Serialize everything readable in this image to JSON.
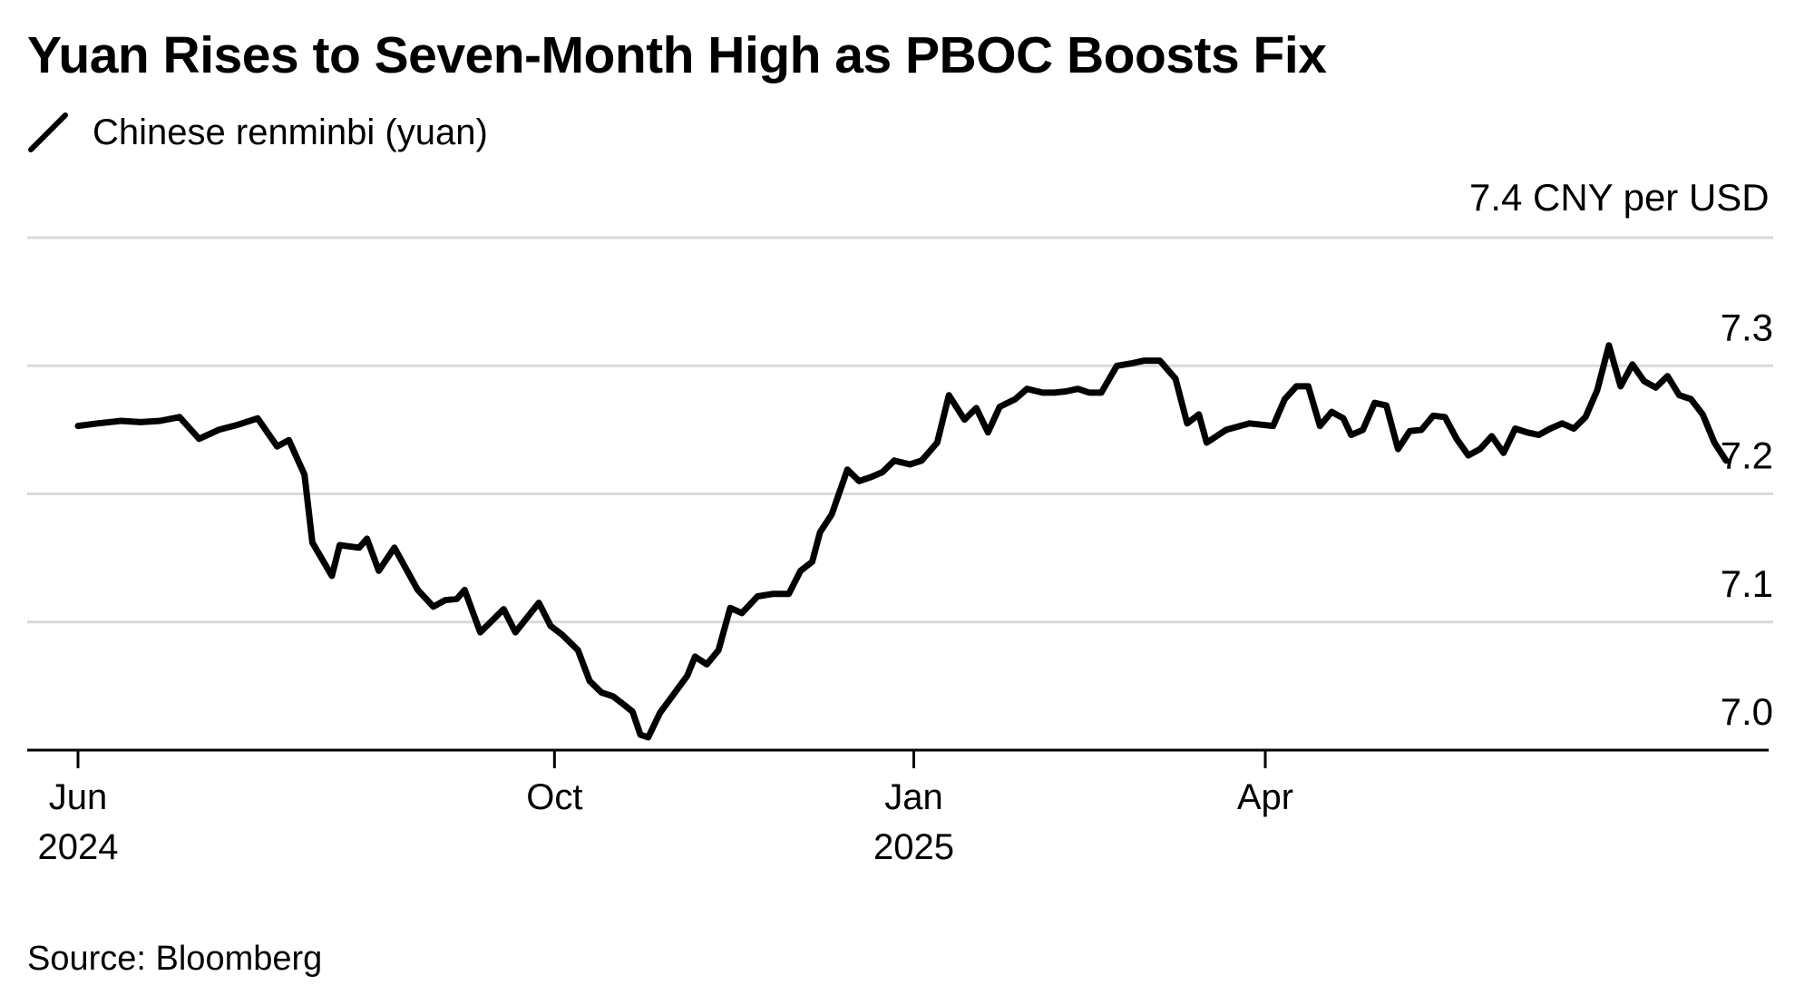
{
  "title": "Yuan Rises to Seven-Month High as PBOC Boosts Fix",
  "legend": {
    "label": "Chinese renminbi (yuan)",
    "color": "#000000"
  },
  "source": "Source: Bloomberg",
  "chart_data": {
    "type": "line",
    "title": "Yuan Rises to Seven-Month High as PBOC Boosts Fix",
    "ylabel": "CNY per USD",
    "ylim": [
      7.0,
      7.4
    ],
    "grid": true,
    "legend_position": "top-left",
    "y_ticks": [
      {
        "value": 7.0,
        "label": "7.0"
      },
      {
        "value": 7.1,
        "label": "7.1"
      },
      {
        "value": 7.2,
        "label": "7.2"
      },
      {
        "value": 7.3,
        "label": "7.3"
      },
      {
        "value": 7.4,
        "label": "7.4"
      }
    ],
    "y_unit_label": "CNY per USD",
    "x_ticks": [
      {
        "date": "2024-06-01",
        "label": "Jun",
        "sublabel": "2024"
      },
      {
        "date": "2024-10-01",
        "label": "Oct",
        "sublabel": ""
      },
      {
        "date": "2025-01-01",
        "label": "Jan",
        "sublabel": "2025"
      },
      {
        "date": "2025-04-01",
        "label": "Apr",
        "sublabel": ""
      }
    ],
    "x_range": [
      "2024-05-17",
      "2025-07-31"
    ],
    "series": [
      {
        "name": "Chinese renminbi (yuan)",
        "color": "#000000",
        "points": [
          [
            "2024-06-01",
            7.253
          ],
          [
            "2024-06-06",
            7.255
          ],
          [
            "2024-06-12",
            7.257
          ],
          [
            "2024-06-17",
            7.256
          ],
          [
            "2024-06-22",
            7.257
          ],
          [
            "2024-06-27",
            7.26
          ],
          [
            "2024-07-02",
            7.243
          ],
          [
            "2024-07-07",
            7.25
          ],
          [
            "2024-07-12",
            7.254
          ],
          [
            "2024-07-17",
            7.259
          ],
          [
            "2024-07-22",
            7.237
          ],
          [
            "2024-07-25",
            7.242
          ],
          [
            "2024-07-29",
            7.215
          ],
          [
            "2024-07-31",
            7.162
          ],
          [
            "2024-08-05",
            7.136
          ],
          [
            "2024-08-07",
            7.16
          ],
          [
            "2024-08-12",
            7.158
          ],
          [
            "2024-08-14",
            7.165
          ],
          [
            "2024-08-17",
            7.14
          ],
          [
            "2024-08-21",
            7.158
          ],
          [
            "2024-08-27",
            7.125
          ],
          [
            "2024-08-31",
            7.112
          ],
          [
            "2024-09-03",
            7.117
          ],
          [
            "2024-09-06",
            7.118
          ],
          [
            "2024-09-08",
            7.125
          ],
          [
            "2024-09-12",
            7.092
          ],
          [
            "2024-09-18",
            7.11
          ],
          [
            "2024-09-21",
            7.092
          ],
          [
            "2024-09-27",
            7.115
          ],
          [
            "2024-09-30",
            7.097
          ],
          [
            "2024-10-03",
            7.09
          ],
          [
            "2024-10-07",
            7.078
          ],
          [
            "2024-10-10",
            7.054
          ],
          [
            "2024-10-13",
            7.045
          ],
          [
            "2024-10-16",
            7.042
          ],
          [
            "2024-10-19",
            7.035
          ],
          [
            "2024-10-21",
            7.03
          ],
          [
            "2024-10-23",
            7.012
          ],
          [
            "2024-10-25",
            7.01
          ],
          [
            "2024-10-28",
            7.029
          ],
          [
            "2024-11-04",
            7.058
          ],
          [
            "2024-11-06",
            7.073
          ],
          [
            "2024-11-09",
            7.067
          ],
          [
            "2024-11-12",
            7.078
          ],
          [
            "2024-11-15",
            7.111
          ],
          [
            "2024-11-18",
            7.107
          ],
          [
            "2024-11-22",
            7.12
          ],
          [
            "2024-11-26",
            7.122
          ],
          [
            "2024-11-30",
            7.122
          ],
          [
            "2024-12-03",
            7.14
          ],
          [
            "2024-12-06",
            7.147
          ],
          [
            "2024-12-08",
            7.17
          ],
          [
            "2024-12-11",
            7.184
          ],
          [
            "2024-12-15",
            7.219
          ],
          [
            "2024-12-18",
            7.21
          ],
          [
            "2024-12-21",
            7.213
          ],
          [
            "2024-12-24",
            7.217
          ],
          [
            "2024-12-27",
            7.226
          ],
          [
            "2024-12-31",
            7.223
          ],
          [
            "2025-01-03",
            7.226
          ],
          [
            "2025-01-07",
            7.24
          ],
          [
            "2025-01-10",
            7.277
          ],
          [
            "2025-01-14",
            7.258
          ],
          [
            "2025-01-17",
            7.267
          ],
          [
            "2025-01-20",
            7.248
          ],
          [
            "2025-01-23",
            7.268
          ],
          [
            "2025-01-27",
            7.274
          ],
          [
            "2025-01-30",
            7.282
          ],
          [
            "2025-02-03",
            7.279
          ],
          [
            "2025-02-06",
            7.279
          ],
          [
            "2025-02-09",
            7.28
          ],
          [
            "2025-02-12",
            7.282
          ],
          [
            "2025-02-15",
            7.279
          ],
          [
            "2025-02-18",
            7.279
          ],
          [
            "2025-02-22",
            7.3
          ],
          [
            "2025-02-26",
            7.302
          ],
          [
            "2025-03-01",
            7.304
          ],
          [
            "2025-03-05",
            7.304
          ],
          [
            "2025-03-09",
            7.29
          ],
          [
            "2025-03-12",
            7.255
          ],
          [
            "2025-03-15",
            7.262
          ],
          [
            "2025-03-17",
            7.24
          ],
          [
            "2025-03-22",
            7.25
          ],
          [
            "2025-03-28",
            7.255
          ],
          [
            "2025-04-03",
            7.253
          ],
          [
            "2025-04-06",
            7.274
          ],
          [
            "2025-04-09",
            7.284
          ],
          [
            "2025-04-12",
            7.284
          ],
          [
            "2025-04-15",
            7.253
          ],
          [
            "2025-04-18",
            7.264
          ],
          [
            "2025-04-21",
            7.259
          ],
          [
            "2025-04-23",
            7.246
          ],
          [
            "2025-04-26",
            7.25
          ],
          [
            "2025-04-29",
            7.271
          ],
          [
            "2025-05-02",
            7.269
          ],
          [
            "2025-05-05",
            7.235
          ],
          [
            "2025-05-08",
            7.249
          ],
          [
            "2025-05-11",
            7.25
          ],
          [
            "2025-05-14",
            7.261
          ],
          [
            "2025-05-17",
            7.26
          ],
          [
            "2025-05-20",
            7.243
          ],
          [
            "2025-05-23",
            7.23
          ],
          [
            "2025-05-26",
            7.235
          ],
          [
            "2025-05-29",
            7.245
          ],
          [
            "2025-06-01",
            7.232
          ],
          [
            "2025-06-04",
            7.251
          ],
          [
            "2025-06-07",
            7.248
          ],
          [
            "2025-06-10",
            7.246
          ],
          [
            "2025-06-13",
            7.251
          ],
          [
            "2025-06-16",
            7.255
          ],
          [
            "2025-06-19",
            7.251
          ],
          [
            "2025-06-22",
            7.26
          ],
          [
            "2025-06-25",
            7.281
          ],
          [
            "2025-06-28",
            7.316
          ],
          [
            "2025-07-01",
            7.284
          ],
          [
            "2025-07-04",
            7.301
          ],
          [
            "2025-07-07",
            7.288
          ],
          [
            "2025-07-10",
            7.283
          ],
          [
            "2025-07-13",
            7.292
          ],
          [
            "2025-07-16",
            7.277
          ],
          [
            "2025-07-19",
            7.274
          ],
          [
            "2025-07-22",
            7.262
          ],
          [
            "2025-07-25",
            7.24
          ],
          [
            "2025-07-28",
            7.226
          ]
        ]
      }
    ]
  }
}
